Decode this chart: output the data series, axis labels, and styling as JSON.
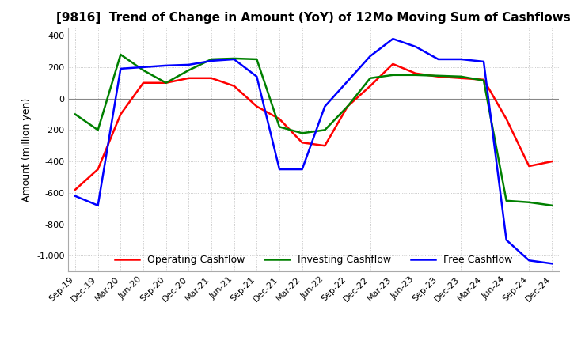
{
  "title": "[9816]  Trend of Change in Amount (YoY) of 12Mo Moving Sum of Cashflows",
  "ylabel": "Amount (million yen)",
  "legend": [
    "Operating Cashflow",
    "Investing Cashflow",
    "Free Cashflow"
  ],
  "legend_colors": [
    "red",
    "green",
    "blue"
  ],
  "x_labels": [
    "Sep-19",
    "Dec-19",
    "Mar-20",
    "Jun-20",
    "Sep-20",
    "Dec-20",
    "Mar-21",
    "Jun-21",
    "Sep-21",
    "Dec-21",
    "Mar-22",
    "Jun-22",
    "Sep-22",
    "Dec-22",
    "Mar-23",
    "Jun-23",
    "Sep-23",
    "Dec-23",
    "Mar-24",
    "Jun-24",
    "Sep-24",
    "Dec-24"
  ],
  "operating": [
    -580,
    -450,
    -100,
    100,
    100,
    130,
    130,
    80,
    -50,
    -130,
    -280,
    -300,
    -50,
    80,
    220,
    160,
    140,
    130,
    120,
    -130,
    -430,
    -400
  ],
  "investing": [
    -100,
    -200,
    280,
    180,
    100,
    180,
    250,
    255,
    250,
    -180,
    -220,
    -200,
    -50,
    130,
    150,
    150,
    145,
    140,
    115,
    -650,
    -660,
    -680
  ],
  "free": [
    -620,
    -680,
    190,
    200,
    210,
    215,
    240,
    250,
    140,
    -450,
    -450,
    -50,
    110,
    270,
    380,
    330,
    250,
    250,
    235,
    -900,
    -1030,
    -1050
  ],
  "ylim": [
    -1100,
    450
  ],
  "yticks": [
    400,
    200,
    0,
    -200,
    -400,
    -600,
    -800,
    -1000
  ],
  "background_color": "#ffffff",
  "grid_color": "#bbbbbb",
  "line_width": 1.8
}
